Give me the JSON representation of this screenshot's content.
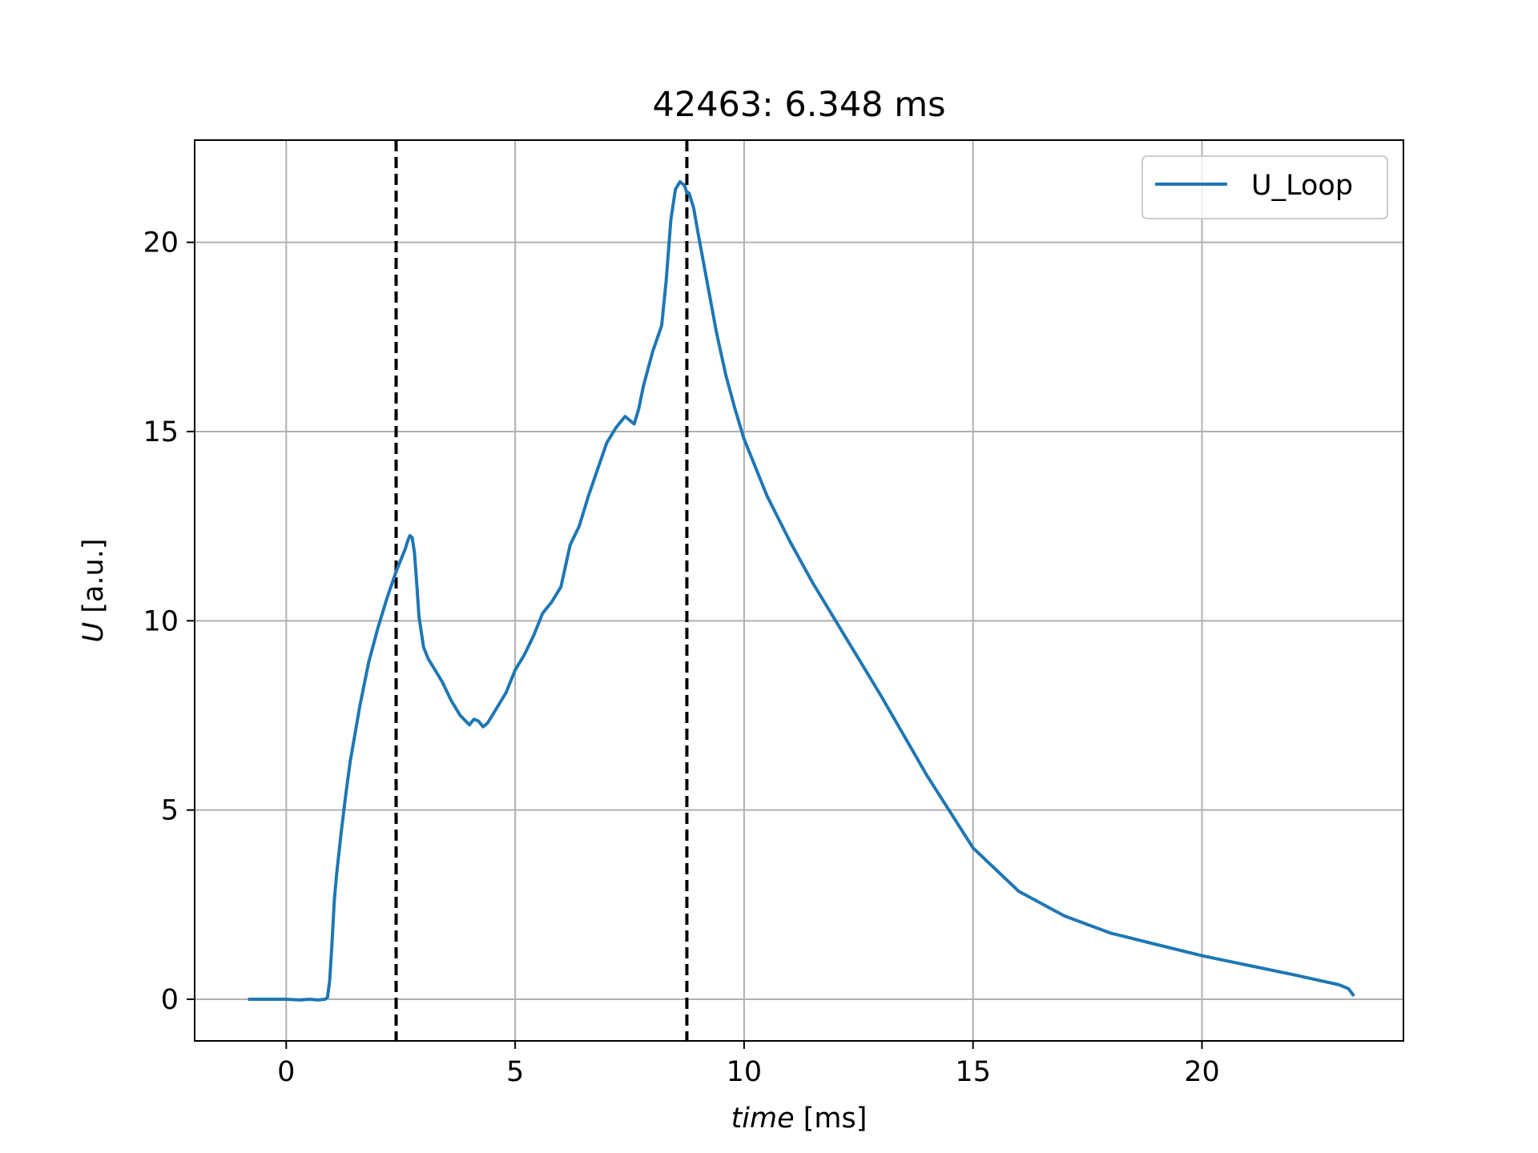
{
  "chart_data": {
    "type": "line",
    "title": "42463: 6.348 ms",
    "xlabel_italic": "time",
    "xlabel_unit": "[ms]",
    "ylabel_italic": "U",
    "ylabel_unit": "[a.u.]",
    "xlim": [
      -2.0,
      24.4
    ],
    "ylim": [
      -1.1,
      22.7
    ],
    "xticks": [
      0,
      5,
      10,
      15,
      20
    ],
    "yticks": [
      0,
      5,
      10,
      15,
      20
    ],
    "grid": true,
    "legend_position": "top-right",
    "vlines": [
      2.4,
      8.75
    ],
    "series": [
      {
        "name": "U_Loop",
        "color": "#1f77b4",
        "x": [
          -0.8,
          -0.3,
          0.0,
          0.3,
          0.5,
          0.7,
          0.85,
          0.9,
          0.95,
          1.0,
          1.05,
          1.1,
          1.2,
          1.3,
          1.4,
          1.5,
          1.6,
          1.8,
          2.0,
          2.2,
          2.4,
          2.5,
          2.6,
          2.65,
          2.7,
          2.75,
          2.8,
          2.85,
          2.9,
          3.0,
          3.1,
          3.2,
          3.4,
          3.6,
          3.8,
          4.0,
          4.1,
          4.2,
          4.3,
          4.4,
          4.5,
          4.6,
          4.8,
          5.0,
          5.2,
          5.4,
          5.6,
          5.8,
          6.0,
          6.2,
          6.4,
          6.6,
          6.8,
          7.0,
          7.2,
          7.4,
          7.5,
          7.6,
          7.7,
          7.8,
          8.0,
          8.2,
          8.3,
          8.4,
          8.5,
          8.6,
          8.7,
          8.75,
          8.8,
          8.9,
          9.0,
          9.2,
          9.4,
          9.6,
          9.8,
          10.0,
          10.5,
          11.0,
          11.5,
          12.0,
          13.0,
          14.0,
          15.0,
          16.0,
          17.0,
          18.0,
          19.0,
          20.0,
          21.0,
          22.0,
          23.0,
          23.2,
          23.3
        ],
        "y": [
          0.0,
          0.0,
          0.0,
          -0.02,
          0.0,
          -0.02,
          0.0,
          0.05,
          0.5,
          1.5,
          2.6,
          3.3,
          4.4,
          5.4,
          6.3,
          7.0,
          7.7,
          8.9,
          9.8,
          10.6,
          11.3,
          11.6,
          11.9,
          12.1,
          12.25,
          12.2,
          11.8,
          11.0,
          10.1,
          9.3,
          9.0,
          8.8,
          8.4,
          7.9,
          7.5,
          7.25,
          7.4,
          7.35,
          7.2,
          7.3,
          7.5,
          7.7,
          8.1,
          8.7,
          9.1,
          9.6,
          10.2,
          10.5,
          10.9,
          12.0,
          12.5,
          13.3,
          14.0,
          14.7,
          15.1,
          15.4,
          15.3,
          15.2,
          15.6,
          16.2,
          17.1,
          17.8,
          19.0,
          20.6,
          21.4,
          21.6,
          21.5,
          21.3,
          21.3,
          20.9,
          20.2,
          18.9,
          17.6,
          16.5,
          15.6,
          14.8,
          13.3,
          12.1,
          11.0,
          10.0,
          8.0,
          5.9,
          4.0,
          2.85,
          2.2,
          1.75,
          1.45,
          1.15,
          0.9,
          0.65,
          0.38,
          0.28,
          0.12
        ]
      }
    ]
  }
}
